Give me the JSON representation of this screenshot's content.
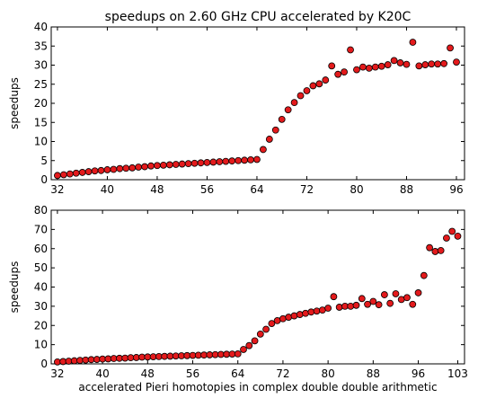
{
  "chart_data": [
    {
      "type": "scatter",
      "title": "speedups on 2.60 GHz CPU accelerated by K20C",
      "ylabel": "speedups",
      "x": [
        32,
        33,
        34,
        35,
        36,
        37,
        38,
        39,
        40,
        41,
        42,
        43,
        44,
        45,
        46,
        47,
        48,
        49,
        50,
        51,
        52,
        53,
        54,
        55,
        56,
        57,
        58,
        59,
        60,
        61,
        62,
        63,
        64,
        65,
        66,
        67,
        68,
        69,
        70,
        71,
        72,
        73,
        74,
        75,
        76,
        77,
        78,
        79,
        80,
        81,
        82,
        83,
        84,
        85,
        86,
        87,
        88,
        89,
        90,
        91,
        92,
        93,
        94,
        95,
        96
      ],
      "series": [
        {
          "name": "speedups",
          "color": "#e31a1c",
          "values": [
            1.1,
            1.3,
            1.5,
            1.7,
            1.9,
            2.1,
            2.3,
            2.4,
            2.6,
            2.7,
            2.9,
            3.0,
            3.1,
            3.3,
            3.4,
            3.6,
            3.7,
            3.8,
            3.9,
            4.0,
            4.1,
            4.2,
            4.3,
            4.4,
            4.5,
            4.6,
            4.7,
            4.8,
            4.9,
            5.0,
            5.1,
            5.2,
            5.3,
            7.9,
            10.6,
            13.0,
            15.8,
            18.3,
            20.2,
            22.0,
            23.3,
            24.6,
            25.1,
            26.1,
            29.8,
            27.6,
            28.2,
            34.0,
            28.8,
            29.5,
            29.2,
            29.5,
            29.7,
            30.1,
            31.2,
            30.6,
            30.2,
            36.0,
            29.8,
            30.1,
            30.3,
            30.3,
            30.4,
            34.5,
            30.8
          ]
        }
      ],
      "xlim": [
        31,
        97.3
      ],
      "xticks": [
        32,
        40,
        48,
        56,
        64,
        72,
        80,
        88,
        96
      ],
      "ylim": [
        0,
        40
      ],
      "yticks": [
        0,
        5,
        10,
        15,
        20,
        25,
        30,
        35,
        40
      ]
    },
    {
      "type": "scatter",
      "xlabel": "accelerated Pieri homotopies in complex double double arithmetic",
      "ylabel": "speedups",
      "x": [
        32,
        33,
        34,
        35,
        36,
        37,
        38,
        39,
        40,
        41,
        42,
        43,
        44,
        45,
        46,
        47,
        48,
        49,
        50,
        51,
        52,
        53,
        54,
        55,
        56,
        57,
        58,
        59,
        60,
        61,
        62,
        63,
        64,
        65,
        66,
        67,
        68,
        69,
        70,
        71,
        72,
        73,
        74,
        75,
        76,
        77,
        78,
        79,
        80,
        81,
        82,
        83,
        84,
        85,
        86,
        87,
        88,
        89,
        90,
        91,
        92,
        93,
        94,
        95,
        96,
        97,
        98,
        99,
        100,
        101,
        102,
        103
      ],
      "series": [
        {
          "name": "speedups",
          "color": "#e31a1c",
          "values": [
            1.0,
            1.2,
            1.4,
            1.6,
            1.8,
            2.0,
            2.2,
            2.3,
            2.5,
            2.6,
            2.8,
            2.9,
            3.0,
            3.2,
            3.3,
            3.5,
            3.6,
            3.7,
            3.8,
            3.9,
            4.0,
            4.1,
            4.2,
            4.3,
            4.4,
            4.5,
            4.6,
            4.7,
            4.8,
            4.9,
            5.0,
            5.1,
            5.2,
            7.5,
            9.5,
            12.0,
            15.5,
            18.0,
            21.0,
            22.5,
            23.5,
            24.3,
            25.0,
            25.7,
            26.3,
            27.0,
            27.5,
            28.0,
            29.0,
            35.0,
            29.5,
            30.0,
            30.0,
            30.5,
            34.0,
            31.0,
            32.5,
            30.8,
            36.0,
            31.5,
            36.5,
            33.5,
            34.5,
            31.0,
            37.0,
            46.0,
            60.5,
            58.5,
            59.0,
            65.5,
            69.0,
            66.5
          ]
        }
      ],
      "xlim": [
        30.9,
        104.2
      ],
      "xticks": [
        32,
        40,
        48,
        56,
        64,
        72,
        80,
        88,
        96,
        103
      ],
      "ylim": [
        0,
        80
      ],
      "yticks": [
        0,
        10,
        20,
        30,
        40,
        50,
        60,
        70,
        80
      ]
    }
  ]
}
